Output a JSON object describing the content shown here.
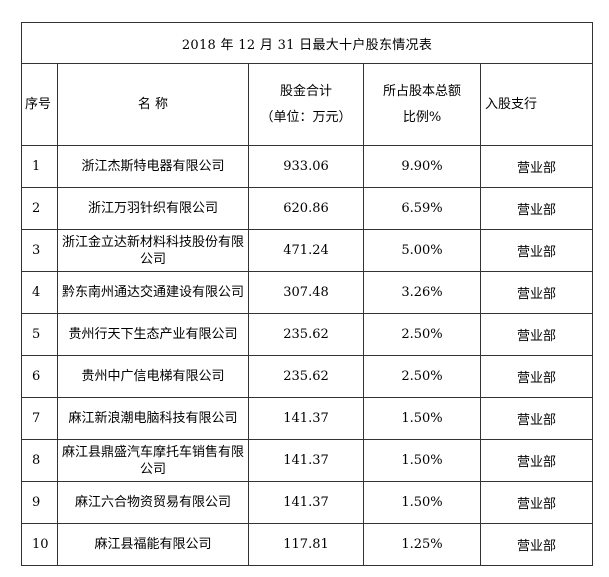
{
  "table": {
    "title": "2018 年 12 月 31 日最大十户股东情况表",
    "headers": {
      "no": "序号",
      "name": "名 称",
      "amount_line1": "股金合计",
      "amount_line2": "（单位：万元）",
      "pct_line1": "所占股本总额",
      "pct_line2": "比例%",
      "branch": "入股支行"
    },
    "rows": [
      {
        "no": "1",
        "name": "浙江杰斯特电器有限公司",
        "amount": "933.06",
        "pct": "9.90%",
        "branch": "营业部"
      },
      {
        "no": "2",
        "name": "浙江万羽针织有限公司",
        "amount": "620.86",
        "pct": "6.59%",
        "branch": "营业部"
      },
      {
        "no": "3",
        "name": "浙江金立达新材料科技股份有限公司",
        "amount": "471.24",
        "pct": "5.00%",
        "branch": "营业部"
      },
      {
        "no": "4",
        "name": "黔东南州通达交通建设有限公司",
        "amount": "307.48",
        "pct": "3.26%",
        "branch": "营业部"
      },
      {
        "no": "5",
        "name": "贵州行天下生态产业有限公司",
        "amount": "235.62",
        "pct": "2.50%",
        "branch": "营业部"
      },
      {
        "no": "6",
        "name": "贵州中广信电梯有限公司",
        "amount": "235.62",
        "pct": "2.50%",
        "branch": "营业部"
      },
      {
        "no": "7",
        "name": "麻江新浪潮电脑科技有限公司",
        "amount": "141.37",
        "pct": "1.50%",
        "branch": "营业部"
      },
      {
        "no": "8",
        "name": "麻江县鼎盛汽车摩托车销售有限公司",
        "amount": "141.37",
        "pct": "1.50%",
        "branch": "营业部"
      },
      {
        "no": "9",
        "name": "麻江六合物资贸易有限公司",
        "amount": "141.37",
        "pct": "1.50%",
        "branch": "营业部"
      },
      {
        "no": "10",
        "name": "麻江县福能有限公司",
        "amount": "117.81",
        "pct": "1.25%",
        "branch": "营业部"
      }
    ]
  }
}
